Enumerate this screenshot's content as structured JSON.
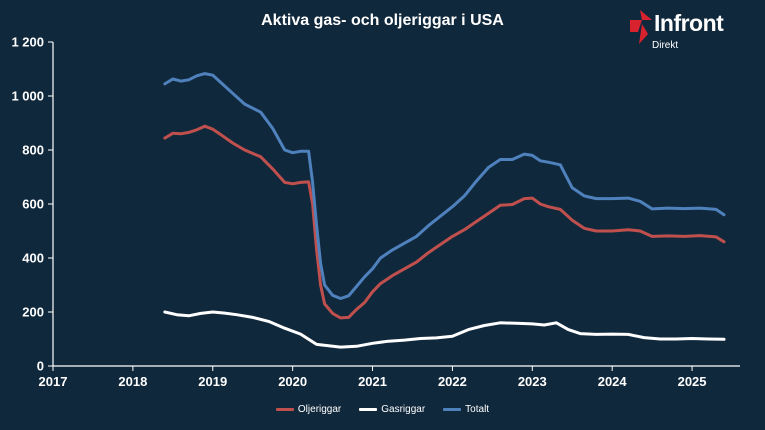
{
  "logo": {
    "word": "Infront",
    "sub": "Direkt",
    "mark_color": "#d8232f"
  },
  "chart_data": {
    "type": "line",
    "title": "Aktiva gas- och oljeriggar i USA",
    "xlabel": "",
    "ylabel": "",
    "xlim": [
      2017,
      2025.6
    ],
    "ylim": [
      0,
      1200
    ],
    "x_ticks": [
      "2017",
      "2018",
      "2019",
      "2020",
      "2021",
      "2022",
      "2023",
      "2024",
      "2025"
    ],
    "y_ticks": [
      "0",
      "200",
      "400",
      "600",
      "800",
      "1 000",
      "1 200"
    ],
    "grid": false,
    "legend_position": "bottom",
    "series": [
      {
        "name": "Oljeriggar",
        "color": "#c0504d",
        "points": [
          [
            2018.4,
            844
          ],
          [
            2018.5,
            862
          ],
          [
            2018.6,
            860
          ],
          [
            2018.7,
            865
          ],
          [
            2018.8,
            875
          ],
          [
            2018.9,
            888
          ],
          [
            2019.0,
            877
          ],
          [
            2019.1,
            857
          ],
          [
            2019.25,
            826
          ],
          [
            2019.4,
            800
          ],
          [
            2019.6,
            775
          ],
          [
            2019.75,
            730
          ],
          [
            2019.9,
            680
          ],
          [
            2020.0,
            675
          ],
          [
            2020.1,
            680
          ],
          [
            2020.2,
            682
          ],
          [
            2020.25,
            600
          ],
          [
            2020.3,
            430
          ],
          [
            2020.35,
            300
          ],
          [
            2020.4,
            230
          ],
          [
            2020.5,
            195
          ],
          [
            2020.6,
            178
          ],
          [
            2020.7,
            180
          ],
          [
            2020.8,
            210
          ],
          [
            2020.9,
            235
          ],
          [
            2021.0,
            275
          ],
          [
            2021.1,
            305
          ],
          [
            2021.25,
            335
          ],
          [
            2021.4,
            360
          ],
          [
            2021.55,
            385
          ],
          [
            2021.7,
            420
          ],
          [
            2021.85,
            450
          ],
          [
            2022.0,
            480
          ],
          [
            2022.15,
            505
          ],
          [
            2022.3,
            535
          ],
          [
            2022.45,
            565
          ],
          [
            2022.6,
            595
          ],
          [
            2022.75,
            598
          ],
          [
            2022.9,
            620
          ],
          [
            2023.0,
            622
          ],
          [
            2023.1,
            600
          ],
          [
            2023.2,
            590
          ],
          [
            2023.35,
            580
          ],
          [
            2023.5,
            540
          ],
          [
            2023.65,
            510
          ],
          [
            2023.8,
            500
          ],
          [
            2024.0,
            500
          ],
          [
            2024.2,
            505
          ],
          [
            2024.35,
            500
          ],
          [
            2024.5,
            480
          ],
          [
            2024.7,
            482
          ],
          [
            2024.9,
            480
          ],
          [
            2025.1,
            483
          ],
          [
            2025.3,
            478
          ],
          [
            2025.4,
            460
          ]
        ]
      },
      {
        "name": "Gasriggar",
        "color": "#ffffff",
        "points": [
          [
            2018.4,
            200
          ],
          [
            2018.55,
            190
          ],
          [
            2018.7,
            186
          ],
          [
            2018.85,
            195
          ],
          [
            2019.0,
            200
          ],
          [
            2019.15,
            196
          ],
          [
            2019.3,
            190
          ],
          [
            2019.5,
            180
          ],
          [
            2019.7,
            165
          ],
          [
            2019.9,
            140
          ],
          [
            2020.1,
            118
          ],
          [
            2020.3,
            80
          ],
          [
            2020.45,
            75
          ],
          [
            2020.6,
            70
          ],
          [
            2020.8,
            73
          ],
          [
            2021.0,
            84
          ],
          [
            2021.2,
            92
          ],
          [
            2021.4,
            96
          ],
          [
            2021.6,
            102
          ],
          [
            2021.8,
            104
          ],
          [
            2022.0,
            110
          ],
          [
            2022.2,
            135
          ],
          [
            2022.4,
            150
          ],
          [
            2022.6,
            160
          ],
          [
            2022.8,
            158
          ],
          [
            2023.0,
            156
          ],
          [
            2023.15,
            152
          ],
          [
            2023.3,
            160
          ],
          [
            2023.45,
            135
          ],
          [
            2023.6,
            120
          ],
          [
            2023.8,
            117
          ],
          [
            2024.0,
            118
          ],
          [
            2024.2,
            117
          ],
          [
            2024.4,
            105
          ],
          [
            2024.6,
            100
          ],
          [
            2024.8,
            100
          ],
          [
            2025.0,
            102
          ],
          [
            2025.2,
            100
          ],
          [
            2025.4,
            99
          ]
        ]
      },
      {
        "name": "Totalt",
        "color": "#4f81bd",
        "points": [
          [
            2018.4,
            1045
          ],
          [
            2018.5,
            1063
          ],
          [
            2018.6,
            1055
          ],
          [
            2018.7,
            1060
          ],
          [
            2018.8,
            1075
          ],
          [
            2018.9,
            1083
          ],
          [
            2019.0,
            1077
          ],
          [
            2019.1,
            1050
          ],
          [
            2019.25,
            1010
          ],
          [
            2019.4,
            970
          ],
          [
            2019.6,
            940
          ],
          [
            2019.75,
            880
          ],
          [
            2019.9,
            800
          ],
          [
            2020.0,
            790
          ],
          [
            2020.1,
            795
          ],
          [
            2020.2,
            795
          ],
          [
            2020.25,
            680
          ],
          [
            2020.3,
            520
          ],
          [
            2020.35,
            380
          ],
          [
            2020.4,
            300
          ],
          [
            2020.5,
            262
          ],
          [
            2020.6,
            250
          ],
          [
            2020.7,
            260
          ],
          [
            2020.8,
            295
          ],
          [
            2020.9,
            330
          ],
          [
            2021.0,
            360
          ],
          [
            2021.1,
            400
          ],
          [
            2021.25,
            430
          ],
          [
            2021.4,
            455
          ],
          [
            2021.55,
            480
          ],
          [
            2021.7,
            520
          ],
          [
            2021.85,
            555
          ],
          [
            2022.0,
            590
          ],
          [
            2022.15,
            630
          ],
          [
            2022.3,
            685
          ],
          [
            2022.45,
            735
          ],
          [
            2022.6,
            765
          ],
          [
            2022.75,
            765
          ],
          [
            2022.9,
            785
          ],
          [
            2023.0,
            780
          ],
          [
            2023.1,
            760
          ],
          [
            2023.2,
            755
          ],
          [
            2023.35,
            745
          ],
          [
            2023.5,
            660
          ],
          [
            2023.65,
            630
          ],
          [
            2023.8,
            620
          ],
          [
            2024.0,
            620
          ],
          [
            2024.2,
            622
          ],
          [
            2024.35,
            610
          ],
          [
            2024.5,
            582
          ],
          [
            2024.7,
            585
          ],
          [
            2024.9,
            583
          ],
          [
            2025.1,
            585
          ],
          [
            2025.3,
            580
          ],
          [
            2025.4,
            560
          ]
        ]
      }
    ]
  }
}
